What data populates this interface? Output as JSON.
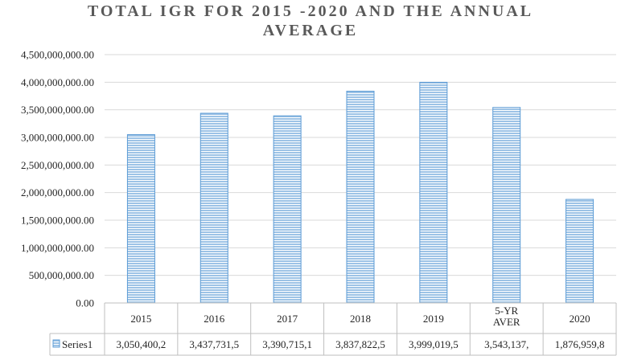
{
  "chart_data": {
    "type": "bar",
    "title_lines": [
      "TOTAL IGR FOR 2015 -2020 AND THE ANNUAL",
      "AVERAGE"
    ],
    "categories": [
      [
        "2015"
      ],
      [
        "2016"
      ],
      [
        "2017"
      ],
      [
        "2018"
      ],
      [
        "2019"
      ],
      [
        "5-YR",
        "AVER"
      ],
      [
        "2020"
      ]
    ],
    "series": [
      {
        "name": "Series1",
        "values": [
          3050400200,
          3437731500,
          3390715100,
          3837822500,
          3999019500,
          3543137000,
          1876959800
        ],
        "table_labels": [
          "3,050,400,2",
          "3,437,731,5",
          "3,390,715,1",
          "3,837,822,5",
          "3,999,019,5",
          "3,543,137,",
          "1,876,959,8"
        ]
      }
    ],
    "ylim": [
      0,
      4500000000
    ],
    "yticks": [
      0,
      500000000,
      1000000000,
      1500000000,
      2000000000,
      2500000000,
      3000000000,
      3500000000,
      4000000000,
      4500000000
    ],
    "ytick_labels": [
      "0.00",
      "500,000,000.00",
      "1,000,000,000.00",
      "1,500,000,000.00",
      "2,000,000,000.00",
      "2,500,000,000.00",
      "3,000,000,000.00",
      "3,500,000,000.00",
      "4,000,000,000.00",
      "4,500,000,000.00"
    ],
    "grid": true,
    "legend": "data-table",
    "colors": {
      "bar_fill": "#9DC3E6",
      "bar_line": "#5B9BD5",
      "grid": "#D9D9D9",
      "text": "#262626",
      "title": "#595959"
    }
  }
}
